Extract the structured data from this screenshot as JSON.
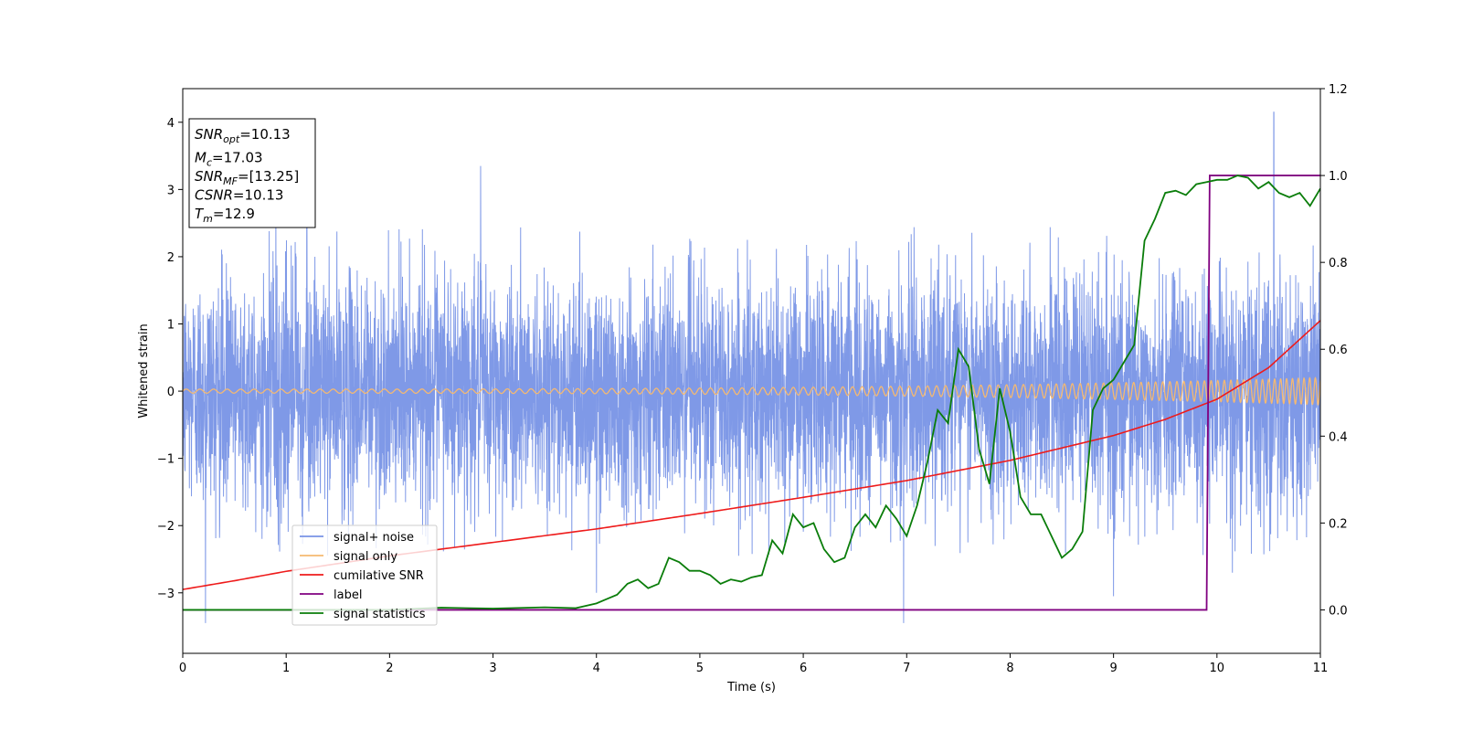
{
  "chart_data": {
    "type": "line",
    "xlabel": "Time (s)",
    "ylabel_left": "Whitened strain",
    "xlim": [
      0,
      11
    ],
    "ylim_left": [
      -3.9,
      4.5
    ],
    "ylim_right": [
      -0.1,
      1.2
    ],
    "xticks": [
      0,
      1,
      2,
      3,
      4,
      5,
      6,
      7,
      8,
      9,
      10,
      11
    ],
    "yticks_left": [
      -3,
      -2,
      -1,
      0,
      1,
      2,
      3,
      4
    ],
    "yticks_right": [
      0.0,
      0.2,
      0.4,
      0.6,
      0.8,
      1.0,
      1.2
    ],
    "grid": false,
    "legend_position": "lower-left",
    "annotation": {
      "lines": [
        {
          "base": "SNR",
          "sub": "opt",
          "value": "=10.13"
        },
        {
          "base": "M",
          "sub": "c",
          "value": "=17.03"
        },
        {
          "base": "SNR",
          "sub": "MF",
          "value": "=[13.25]"
        },
        {
          "base": "CSNR",
          "sub": "",
          "value": "=10.13"
        },
        {
          "base": "T",
          "sub": "m",
          "value": "=12.9"
        }
      ]
    },
    "series": [
      {
        "name": "signal+ noise",
        "axis": "left",
        "color": "#7893e6",
        "kind": "noise",
        "spread_sigma": 0.85,
        "spikes": [
          {
            "x": 0.22,
            "y": -3.45
          },
          {
            "x": 0.9,
            "y": 2.95
          },
          {
            "x": 1.2,
            "y": 2.8
          },
          {
            "x": 2.88,
            "y": 3.35
          },
          {
            "x": 4.0,
            "y": -3.0
          },
          {
            "x": 6.97,
            "y": -3.45
          },
          {
            "x": 9.0,
            "y": -3.05
          },
          {
            "x": 10.15,
            "y": -2.7
          },
          {
            "x": 10.55,
            "y": 4.15
          }
        ]
      },
      {
        "name": "signal only",
        "axis": "left",
        "color": "#f5b971",
        "kind": "chirp",
        "amplitude_start": 0.03,
        "amplitude_end": 0.2,
        "tau": 12.9
      },
      {
        "name": "cumilative SNR",
        "axis": "left",
        "color": "#ee1b1b",
        "x": [
          0,
          0.5,
          1,
          2,
          3,
          4,
          5,
          6,
          7,
          8,
          9,
          9.5,
          10,
          10.5,
          11
        ],
        "y": [
          -2.95,
          -2.82,
          -2.68,
          -2.45,
          -2.25,
          -2.05,
          -1.82,
          -1.58,
          -1.33,
          -1.03,
          -0.66,
          -0.42,
          -0.12,
          0.35,
          1.05
        ]
      },
      {
        "name": "label",
        "axis": "right",
        "color": "#800080",
        "x": [
          0,
          9.9,
          9.93,
          11
        ],
        "y": [
          0,
          0,
          1.0,
          1.0
        ]
      },
      {
        "name": "signal statistics",
        "axis": "right",
        "color": "#0a7d0a",
        "x": [
          0,
          1,
          2,
          2.5,
          3,
          3.5,
          3.8,
          4.0,
          4.1,
          4.2,
          4.3,
          4.4,
          4.5,
          4.6,
          4.7,
          4.8,
          4.9,
          5.0,
          5.1,
          5.2,
          5.3,
          5.4,
          5.5,
          5.6,
          5.7,
          5.8,
          5.9,
          6.0,
          6.1,
          6.2,
          6.3,
          6.4,
          6.5,
          6.6,
          6.7,
          6.8,
          6.9,
          7.0,
          7.1,
          7.2,
          7.3,
          7.4,
          7.5,
          7.6,
          7.7,
          7.8,
          7.9,
          8.0,
          8.1,
          8.2,
          8.3,
          8.4,
          8.5,
          8.6,
          8.7,
          8.8,
          8.9,
          9.0,
          9.1,
          9.2,
          9.3,
          9.4,
          9.5,
          9.6,
          9.7,
          9.8,
          9.9,
          10.0,
          10.1,
          10.2,
          10.3,
          10.4,
          10.5,
          10.6,
          10.7,
          10.8,
          10.9,
          11.0
        ],
        "y": [
          0.0,
          0.0,
          0.0,
          0.005,
          0.003,
          0.006,
          0.004,
          0.015,
          0.025,
          0.035,
          0.06,
          0.07,
          0.05,
          0.06,
          0.12,
          0.11,
          0.09,
          0.09,
          0.08,
          0.06,
          0.07,
          0.065,
          0.075,
          0.08,
          0.16,
          0.13,
          0.22,
          0.19,
          0.2,
          0.14,
          0.11,
          0.12,
          0.19,
          0.22,
          0.19,
          0.24,
          0.21,
          0.17,
          0.24,
          0.34,
          0.46,
          0.43,
          0.6,
          0.56,
          0.37,
          0.29,
          0.51,
          0.41,
          0.26,
          0.22,
          0.22,
          0.17,
          0.12,
          0.14,
          0.18,
          0.46,
          0.51,
          0.53,
          0.57,
          0.61,
          0.85,
          0.9,
          0.96,
          0.965,
          0.955,
          0.98,
          0.985,
          0.99,
          0.99,
          1.0,
          0.995,
          0.97,
          0.985,
          0.96,
          0.95,
          0.96,
          0.93,
          0.97
        ]
      }
    ]
  }
}
